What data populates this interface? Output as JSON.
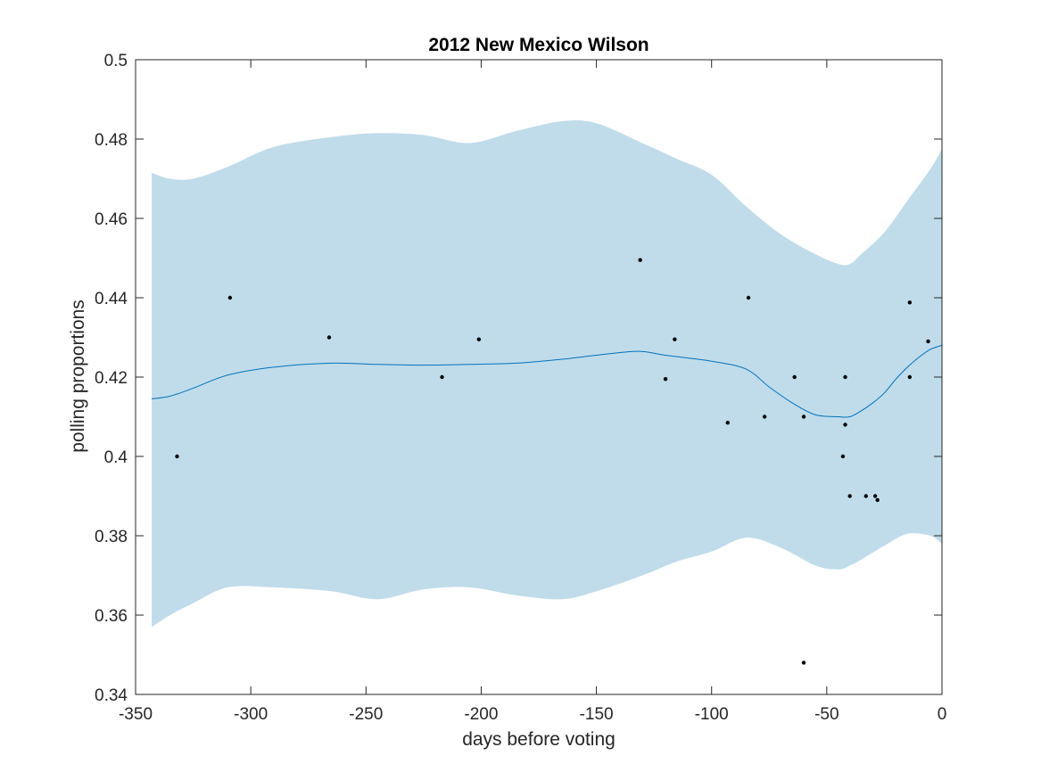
{
  "chart_data": {
    "type": "line",
    "title": "2012 New Mexico Wilson",
    "xlabel": "days before voting",
    "ylabel": "polling proportions",
    "xlim": [
      -350,
      0
    ],
    "ylim": [
      0.34,
      0.5
    ],
    "xticks": [
      -350,
      -300,
      -250,
      -200,
      -150,
      -100,
      -50,
      0
    ],
    "xtick_labels": [
      "-350",
      "-300",
      "-250",
      "-200",
      "-150",
      "-100",
      "-50",
      "0"
    ],
    "yticks": [
      0.34,
      0.36,
      0.38,
      0.4,
      0.42,
      0.44,
      0.46,
      0.48,
      0.5
    ],
    "ytick_labels": [
      "0.34",
      "0.36",
      "0.38",
      "0.4",
      "0.42",
      "0.44",
      "0.46",
      "0.48",
      "0.5"
    ],
    "grid": false,
    "colors": {
      "band": "#c0dcea",
      "line": "#0072bd",
      "points": "#000000",
      "axis": "#262626"
    },
    "band": {
      "x": [
        -343,
        -335,
        -325,
        -310,
        -290,
        -265,
        -245,
        -225,
        -205,
        -185,
        -165,
        -150,
        -130,
        -115,
        -100,
        -85,
        -70,
        -55,
        -45,
        -40,
        -35,
        -25,
        -15,
        -5,
        0
      ],
      "upper": [
        0.4715,
        0.47,
        0.47,
        0.473,
        0.478,
        0.4805,
        0.4815,
        0.481,
        0.479,
        0.482,
        0.4845,
        0.484,
        0.479,
        0.475,
        0.471,
        0.463,
        0.456,
        0.451,
        0.4485,
        0.4485,
        0.451,
        0.4565,
        0.4645,
        0.4725,
        0.4775
      ],
      "lower": [
        0.357,
        0.36,
        0.363,
        0.367,
        0.367,
        0.366,
        0.364,
        0.3665,
        0.367,
        0.365,
        0.364,
        0.366,
        0.37,
        0.3735,
        0.376,
        0.3795,
        0.377,
        0.3725,
        0.3715,
        0.3725,
        0.374,
        0.3775,
        0.3805,
        0.38,
        0.378
      ]
    },
    "series": [
      {
        "x": [
          -343,
          -335,
          -325,
          -310,
          -290,
          -265,
          -245,
          -225,
          -205,
          -185,
          -165,
          -150,
          -132,
          -120,
          -100,
          -85,
          -75,
          -65,
          -55,
          -45,
          -40,
          -35,
          -30,
          -25,
          -20,
          -15,
          -10,
          -5,
          0
        ],
        "values": [
          0.4145,
          0.4152,
          0.4172,
          0.4205,
          0.4225,
          0.4235,
          0.4232,
          0.423,
          0.4232,
          0.4235,
          0.4245,
          0.4255,
          0.4265,
          0.4255,
          0.424,
          0.422,
          0.4175,
          0.4135,
          0.4105,
          0.41,
          0.41,
          0.4115,
          0.4135,
          0.416,
          0.4195,
          0.4225,
          0.425,
          0.427,
          0.428
        ]
      }
    ],
    "points": {
      "x": [
        -332,
        -309,
        -266,
        -217,
        -201,
        -131,
        -120,
        -116,
        -93,
        -84,
        -77,
        -64,
        -60,
        -60,
        -43,
        -42,
        -42,
        -40,
        -33,
        -29,
        -28,
        -14,
        -14,
        -6
      ],
      "y": [
        0.4,
        0.44,
        0.43,
        0.42,
        0.4295,
        0.4495,
        0.4195,
        0.4295,
        0.4085,
        0.44,
        0.41,
        0.42,
        0.41,
        0.348,
        0.4,
        0.42,
        0.408,
        0.39,
        0.39,
        0.39,
        0.389,
        0.4388,
        0.42,
        0.429
      ]
    }
  }
}
